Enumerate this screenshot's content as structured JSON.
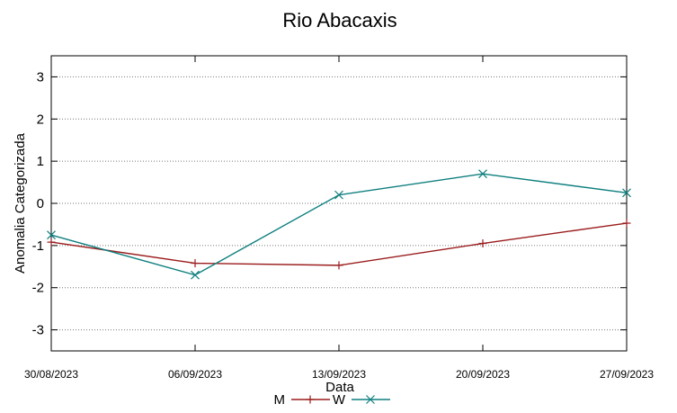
{
  "chart_data": {
    "type": "line",
    "title": "Rio Abacaxis",
    "xlabel": "Data",
    "ylabel": "Anomalia Categorizada",
    "categories": [
      "30/08/2023",
      "06/09/2023",
      "13/09/2023",
      "20/09/2023",
      "27/09/2023"
    ],
    "yticks": [
      "3",
      "2",
      "1",
      "0",
      "-1",
      "-2",
      "-3"
    ],
    "ylim": [
      -3.5,
      3.5
    ],
    "grid": "horizontal dotted",
    "legend": "bottom-center",
    "series": [
      {
        "name": "M",
        "color": "#9b1c1c",
        "marker": "plus",
        "values": [
          -0.92,
          -1.42,
          -1.47,
          -0.95,
          -0.47
        ]
      },
      {
        "name": "W",
        "color": "#0f7f7f",
        "marker": "x",
        "values": [
          -0.75,
          -1.7,
          0.2,
          0.7,
          0.25
        ]
      }
    ]
  }
}
